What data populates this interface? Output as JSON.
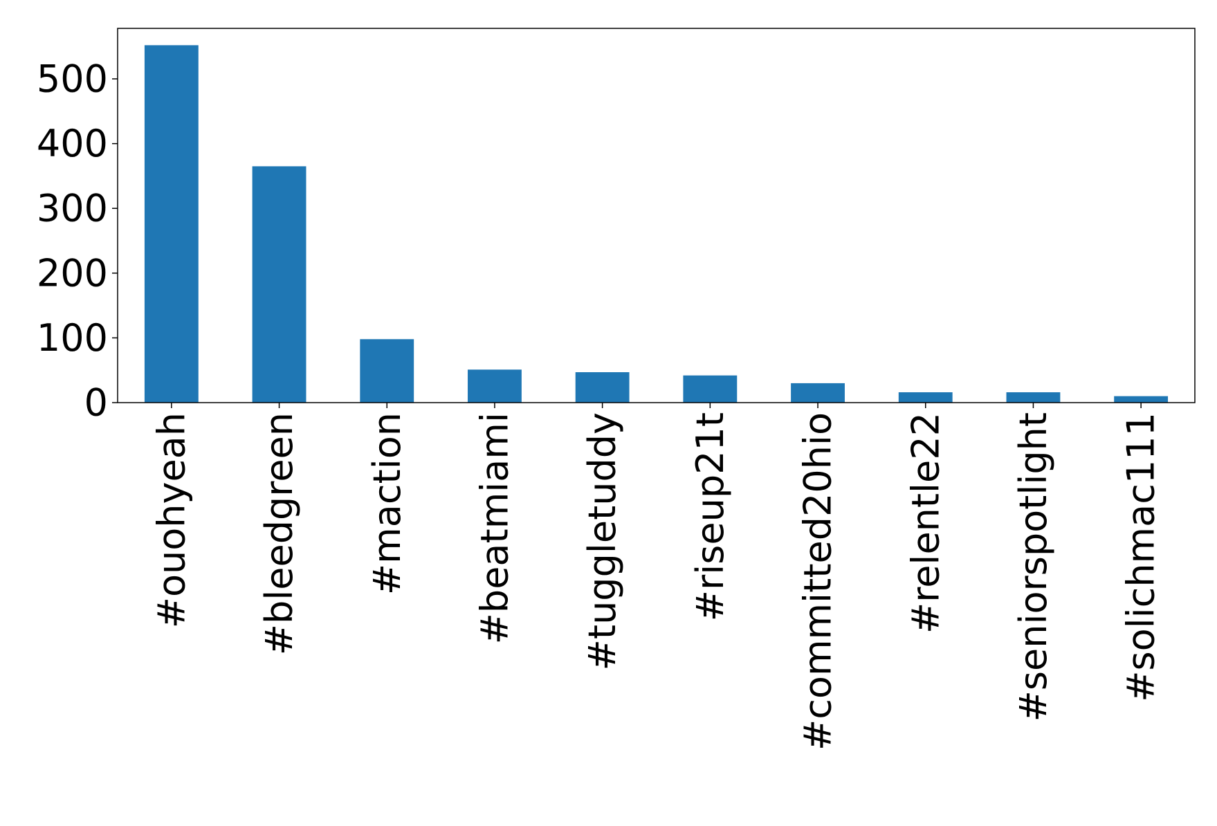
{
  "chart_data": {
    "type": "bar",
    "categories": [
      "#ouohyeah",
      "#bleedgreen",
      "#maction",
      "#beatmiami",
      "#tuggletuddy",
      "#riseup21t",
      "#committed20hio",
      "#relentle22",
      "#seniorspotlight",
      "#solichmac111"
    ],
    "values": [
      552,
      365,
      98,
      51,
      47,
      42,
      30,
      16,
      16,
      10
    ],
    "color": "#1f77b4",
    "ylim": [
      0,
      578
    ],
    "yticks": [
      0,
      100,
      200,
      300,
      400,
      500
    ],
    "grid": false
  }
}
